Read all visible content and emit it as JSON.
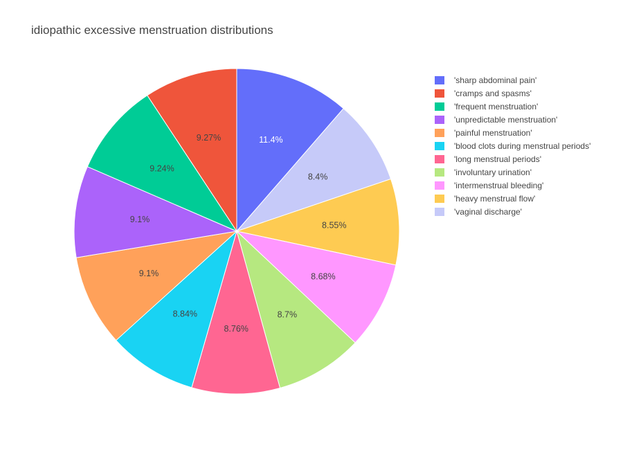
{
  "chart_data": {
    "type": "pie",
    "title": "idiopathic excessive menstruation distributions",
    "slices": [
      {
        "label": "'sharp abdominal pain'",
        "value": 11.4,
        "text": "11.4%",
        "color": "#636efa",
        "text_color": "#ffffff"
      },
      {
        "label": "'vaginal discharge'",
        "value": 8.4,
        "text": "8.4%",
        "color": "#c6caf9",
        "text_color": "#444444"
      },
      {
        "label": "'heavy menstrual flow'",
        "value": 8.55,
        "text": "8.55%",
        "color": "#fecb52",
        "text_color": "#444444"
      },
      {
        "label": "'intermenstrual bleeding'",
        "value": 8.68,
        "text": "8.68%",
        "color": "#ff97ff",
        "text_color": "#444444"
      },
      {
        "label": "'involuntary urination'",
        "value": 8.7,
        "text": "8.7%",
        "color": "#b6e880",
        "text_color": "#444444"
      },
      {
        "label": "'long menstrual periods'",
        "value": 8.76,
        "text": "8.76%",
        "color": "#ff6692",
        "text_color": "#444444"
      },
      {
        "label": "'blood clots during menstrual periods'",
        "value": 8.84,
        "text": "8.84%",
        "color": "#19d3f3",
        "text_color": "#444444"
      },
      {
        "label": "'painful menstruation'",
        "value": 9.1,
        "text": "9.1%",
        "color": "#ffa15a",
        "text_color": "#444444"
      },
      {
        "label": "'unpredictable menstruation'",
        "value": 9.1,
        "text": "9.1%",
        "color": "#ab63fa",
        "text_color": "#444444"
      },
      {
        "label": "'frequent menstruation'",
        "value": 9.24,
        "text": "9.24%",
        "color": "#00cc96",
        "text_color": "#444444"
      },
      {
        "label": "'cramps and spasms'",
        "value": 9.27,
        "text": "9.27%",
        "color": "#ef553b",
        "text_color": "#444444"
      }
    ],
    "legend": {
      "placement": "right",
      "items": [
        {
          "label": "'sharp abdominal pain'",
          "color": "#636efa"
        },
        {
          "label": "'cramps and spasms'",
          "color": "#ef553b"
        },
        {
          "label": "'frequent menstruation'",
          "color": "#00cc96"
        },
        {
          "label": "'unpredictable menstruation'",
          "color": "#ab63fa"
        },
        {
          "label": "'painful menstruation'",
          "color": "#ffa15a"
        },
        {
          "label": "'blood clots during menstrual periods'",
          "color": "#19d3f3"
        },
        {
          "label": "'long menstrual periods'",
          "color": "#ff6692"
        },
        {
          "label": "'involuntary urination'",
          "color": "#b6e880"
        },
        {
          "label": "'intermenstrual bleeding'",
          "color": "#ff97ff"
        },
        {
          "label": "'heavy menstrual flow'",
          "color": "#fecb52"
        },
        {
          "label": "'vaginal discharge'",
          "color": "#c6caf9"
        }
      ]
    },
    "direction": "clockwise",
    "start": "top"
  }
}
